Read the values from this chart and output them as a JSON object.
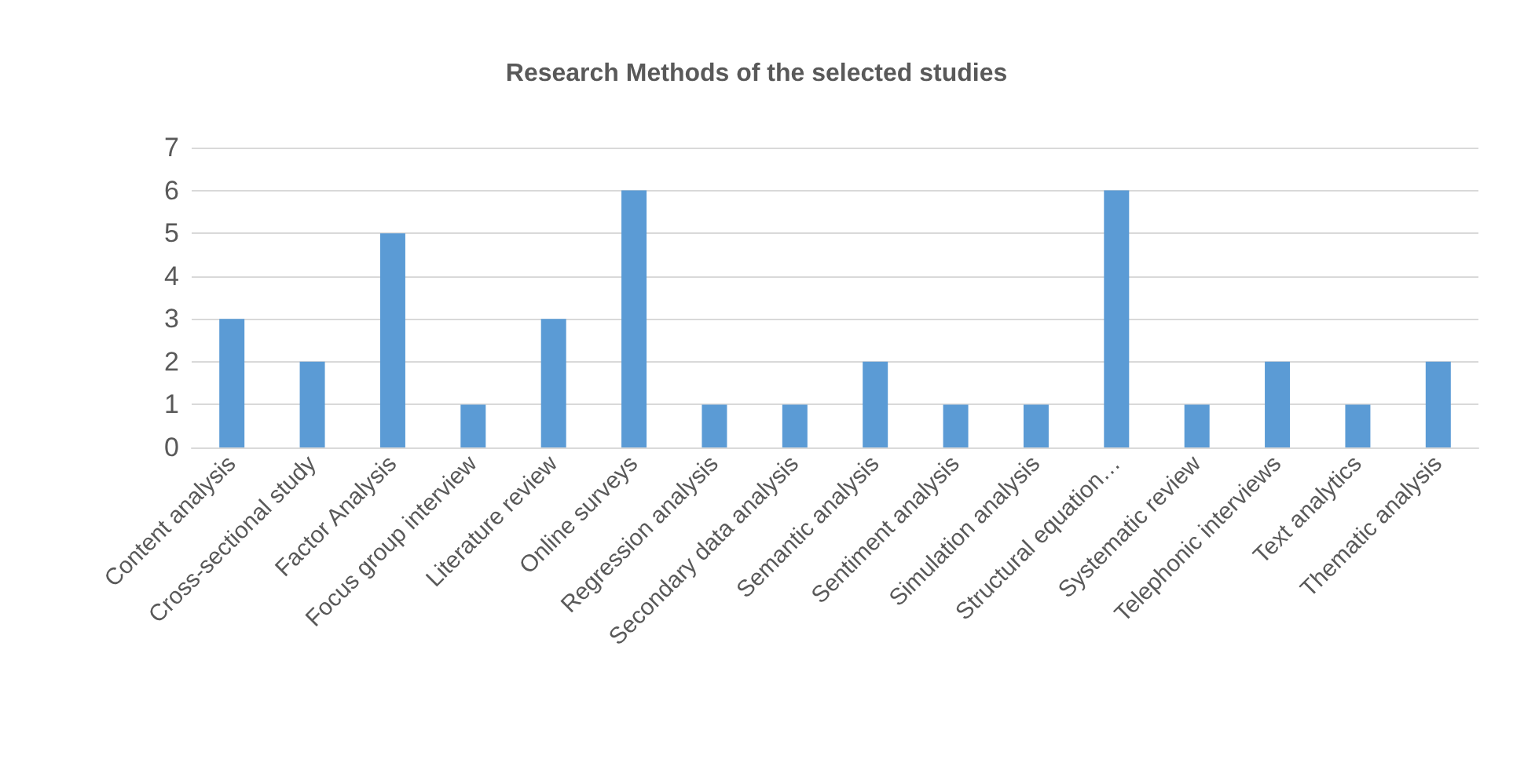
{
  "chart_data": {
    "type": "bar",
    "title": "Research Methods of the selected studies",
    "categories": [
      "Content analysis",
      "Cross-sectional study",
      "Factor Analysis",
      "Focus group interview",
      "Literature review",
      "Online surveys",
      "Regression analysis",
      "Secondary data analysis",
      "Semantic analysis",
      "Sentiment analysis",
      "Simulation analysis",
      "Structural equation…",
      "Systematic review",
      "Telephonic interviews",
      "Text analytics",
      "Thematic analysis"
    ],
    "values": [
      3,
      2,
      5,
      1,
      3,
      6,
      1,
      1,
      2,
      1,
      1,
      6,
      1,
      2,
      1,
      2
    ],
    "color": "#5b9bd5",
    "ylim": [
      0,
      7
    ],
    "yticks": [
      0,
      1,
      2,
      3,
      4,
      5,
      6,
      7
    ],
    "grid": "y"
  }
}
